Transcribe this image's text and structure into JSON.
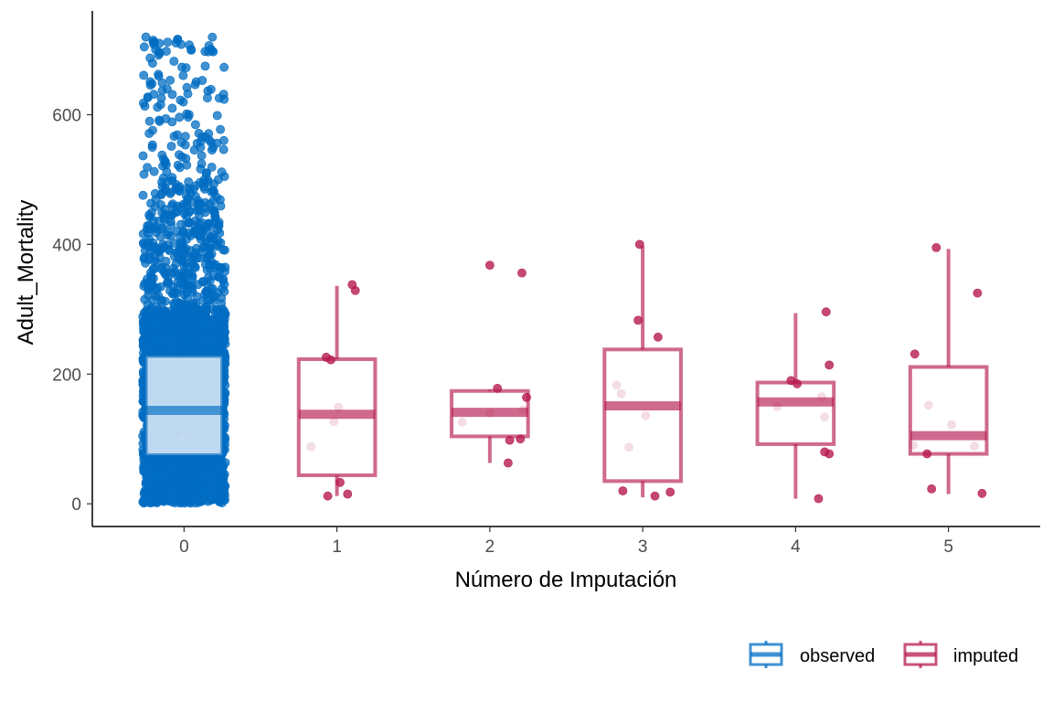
{
  "chart_data": {
    "type": "boxplot",
    "xlabel": "Número de Imputación",
    "ylabel": "Adult_Mortality",
    "x_ticks": [
      "0",
      "1",
      "2",
      "3",
      "4",
      "5"
    ],
    "y_ticks": [
      0,
      200,
      400,
      600
    ],
    "xlim": [
      -0.6,
      5.6
    ],
    "ylim": [
      -35,
      760
    ],
    "grid": false,
    "legend_position": "bottom-right",
    "colors": {
      "observed": "#006CC2",
      "imputed": "#B61A51"
    },
    "legend": [
      {
        "key": "observed",
        "label": "observed"
      },
      {
        "key": "imputed",
        "label": "imputed"
      }
    ],
    "boxes": [
      {
        "x": 0,
        "group": "observed",
        "whisker_low": 1,
        "q1": 75,
        "median": 144,
        "q3": 228,
        "whisker_high": 455
      },
      {
        "x": 1,
        "group": "imputed",
        "whisker_low": 12,
        "q1": 44,
        "median": 138,
        "q3": 223,
        "whisker_high": 336
      },
      {
        "x": 2,
        "group": "imputed",
        "whisker_low": 63,
        "q1": 104,
        "median": 141,
        "q3": 174,
        "whisker_high": 176
      },
      {
        "x": 3,
        "group": "imputed",
        "whisker_low": 10,
        "q1": 35,
        "median": 151,
        "q3": 238,
        "whisker_high": 398
      },
      {
        "x": 4,
        "group": "imputed",
        "whisker_low": 8,
        "q1": 92,
        "median": 157,
        "q3": 187,
        "whisker_high": 294
      },
      {
        "x": 5,
        "group": "imputed",
        "whisker_low": 15,
        "q1": 77,
        "median": 105,
        "q3": 211,
        "whisker_high": 393
      }
    ],
    "imputed_points": [
      [
        0.83,
        88
      ],
      [
        0.93,
        226
      ],
      [
        0.96,
        222
      ],
      [
        1.01,
        149
      ],
      [
        0.98,
        127
      ],
      [
        1.1,
        338
      ],
      [
        1.12,
        329
      ],
      [
        1.02,
        33
      ],
      [
        0.94,
        12
      ],
      [
        1.07,
        15
      ],
      [
        2.0,
        368
      ],
      [
        2.21,
        356
      ],
      [
        2.05,
        178
      ],
      [
        2.24,
        164
      ],
      [
        2.22,
        145
      ],
      [
        1.82,
        126
      ],
      [
        2.13,
        98
      ],
      [
        2.2,
        100
      ],
      [
        2.12,
        63
      ],
      [
        2.0,
        140
      ],
      [
        2.98,
        400
      ],
      [
        2.97,
        283
      ],
      [
        3.1,
        257
      ],
      [
        2.83,
        183
      ],
      [
        2.86,
        170
      ],
      [
        3.02,
        136
      ],
      [
        2.91,
        87
      ],
      [
        2.87,
        20
      ],
      [
        3.08,
        12
      ],
      [
        3.18,
        18
      ],
      [
        3.97,
        190
      ],
      [
        3.88,
        150
      ],
      [
        4.01,
        185
      ],
      [
        4.17,
        165
      ],
      [
        4.19,
        134
      ],
      [
        4.2,
        296
      ],
      [
        4.22,
        214
      ],
      [
        4.19,
        80
      ],
      [
        4.22,
        77
      ],
      [
        4.15,
        8
      ],
      [
        4.92,
        395
      ],
      [
        5.19,
        325
      ],
      [
        4.78,
        231
      ],
      [
        4.87,
        152
      ],
      [
        5.02,
        122
      ],
      [
        5.17,
        89
      ],
      [
        4.77,
        90
      ],
      [
        4.86,
        77
      ],
      [
        4.89,
        23
      ],
      [
        5.22,
        16
      ]
    ],
    "observed_points": {
      "count": 2930,
      "x_range": [
        -0.27,
        0.27
      ],
      "y_range": [
        1,
        723
      ],
      "dense_band": [
        1,
        300
      ]
    }
  }
}
